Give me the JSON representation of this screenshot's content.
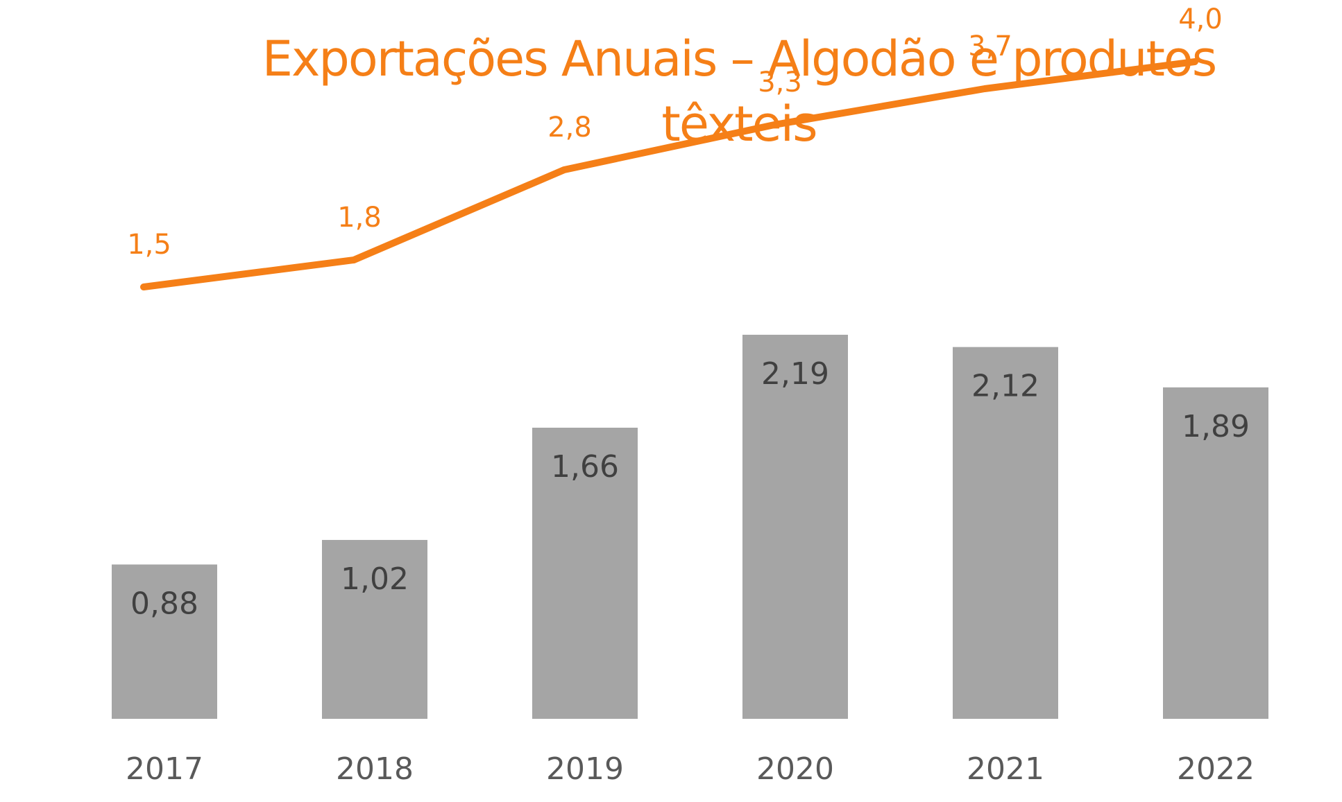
{
  "chart_data": {
    "type": "bar",
    "title": "Exportações Anuais – Algodão e produtos têxteis",
    "categories": [
      "2017",
      "2018",
      "2019",
      "2020",
      "2021",
      "2022"
    ],
    "series": [
      {
        "type": "bar",
        "values": [
          0.88,
          1.02,
          1.66,
          2.19,
          2.12,
          1.89
        ],
        "labels": [
          "0,88",
          "1,02",
          "1,66",
          "2,19",
          "2,12",
          "1,89"
        ],
        "color": "#A5A5A5"
      },
      {
        "type": "line",
        "values": [
          1.5,
          1.8,
          2.8,
          3.3,
          3.7,
          4.0
        ],
        "labels": [
          "1,5",
          "1,8",
          "2,8",
          "3,3",
          "3,7",
          "4,0"
        ],
        "color": "#F57F17"
      }
    ],
    "grid": false,
    "legend": "none",
    "accent_color": "#F57F17"
  }
}
